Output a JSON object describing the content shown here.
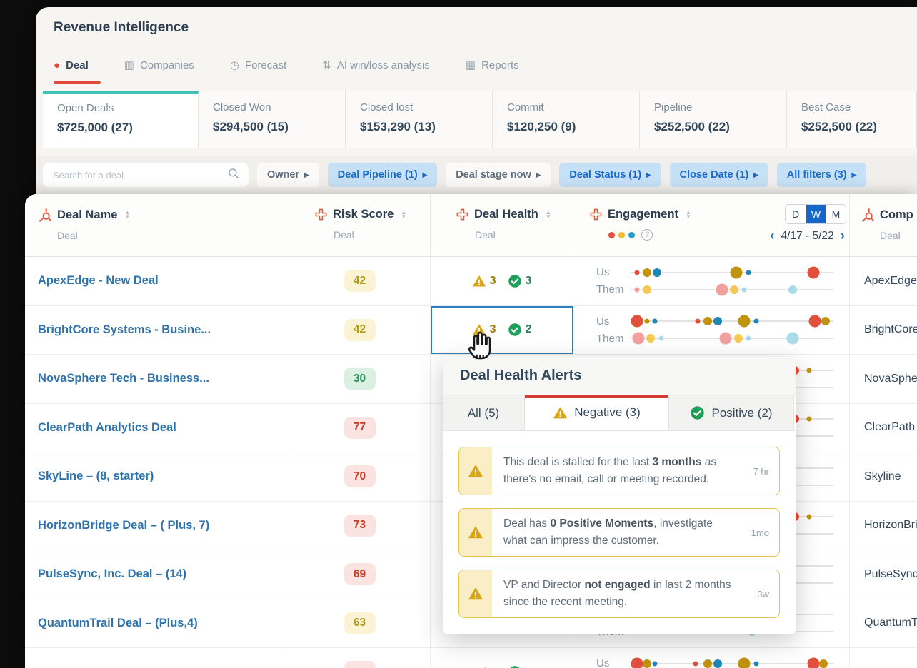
{
  "app_title": "Revenue Intelligence",
  "nav_tabs": [
    {
      "label": "Deal",
      "icon": "deal-icon",
      "glyph": "●",
      "active": true
    },
    {
      "label": "Companies",
      "icon": "companies-icon",
      "glyph": "▥",
      "active": false
    },
    {
      "label": "Forecast",
      "icon": "forecast-icon",
      "glyph": "◷",
      "active": false
    },
    {
      "label": "AI win/loss analysis",
      "icon": "ai-winloss-icon",
      "glyph": "⇅",
      "active": false
    },
    {
      "label": "Reports",
      "icon": "reports-icon",
      "glyph": "▦",
      "active": false
    }
  ],
  "summary_cards": [
    {
      "label": "Open Deals",
      "value": "$725,000 (27)",
      "selected": true
    },
    {
      "label": "Closed Won",
      "value": "$294,500 (15)",
      "selected": false
    },
    {
      "label": "Closed lost",
      "value": "$153,290 (13)",
      "selected": false
    },
    {
      "label": "Commit",
      "value": "$120,250 (9)",
      "selected": false
    },
    {
      "label": "Pipeline",
      "value": "$252,500 (22)",
      "selected": false
    },
    {
      "label": "Best Case",
      "value": "$252,500 (22)",
      "selected": false
    }
  ],
  "filter_bar": {
    "search_placeholder": "Search for a deal",
    "chips": [
      {
        "label": "Owner",
        "active": false
      },
      {
        "label": "Deal Pipeline (1)",
        "active": true
      },
      {
        "label": "Deal stage now",
        "active": false
      },
      {
        "label": "Deal Status (1)",
        "active": true
      },
      {
        "label": "Close Date (1)",
        "active": true
      },
      {
        "label": "All filters (3)",
        "active": true
      }
    ]
  },
  "table": {
    "columns": [
      {
        "title": "Deal Name",
        "subtitle": "Deal",
        "icon": "sprocket",
        "sortable": true
      },
      {
        "title": "Risk Score",
        "subtitle": "Deal",
        "icon": "cross",
        "sortable": true
      },
      {
        "title": "Deal Health",
        "subtitle": "Deal",
        "icon": "cross",
        "sortable": true
      },
      {
        "title": "Engagement",
        "icon": "cross",
        "sortable": true,
        "legend_colors": [
          "#e2503c",
          "#eebc2d",
          "#2b9bc7"
        ],
        "period_options": [
          "D",
          "W",
          "M"
        ],
        "period_selected": "W",
        "date_range": "4/17 - 5/22"
      },
      {
        "title": "Comp",
        "subtitle": "Deal",
        "icon": "sprocket",
        "sortable": false
      }
    ],
    "engagement_labels": {
      "us": "Us",
      "them": "Them"
    },
    "rows": [
      {
        "deal_name": "ApexEdge - New Deal",
        "risk_score": "42",
        "risk_level": "yellow",
        "health": {
          "negative": "3",
          "positive": "3"
        },
        "health_selected": false,
        "company": "ApexEdge",
        "us": [
          [
            "red",
            "s",
            3
          ],
          [
            "olive",
            "m",
            8
          ],
          [
            "blue",
            "m",
            13
          ],
          [
            "olive",
            "l",
            52
          ],
          [
            "blue",
            "s",
            58
          ],
          [
            "red",
            "l",
            90
          ]
        ],
        "them": [
          [
            "pink",
            "s",
            3
          ],
          [
            "yellow",
            "m",
            8
          ],
          [
            "pink",
            "l",
            45
          ],
          [
            "yellow",
            "m",
            51
          ],
          [
            "lightblue",
            "s",
            56
          ],
          [
            "lightblue",
            "m",
            80
          ]
        ]
      },
      {
        "deal_name": "BrightCore Systems - Busine...",
        "risk_score": "42",
        "risk_level": "yellow",
        "health": {
          "negative": "3",
          "positive": "2"
        },
        "health_selected": true,
        "company": "BrightCore",
        "us": [
          [
            "red",
            "l",
            3
          ],
          [
            "olive",
            "s",
            8
          ],
          [
            "blue",
            "s",
            12
          ],
          [
            "red",
            "s",
            33
          ],
          [
            "olive",
            "m",
            38
          ],
          [
            "blue",
            "m",
            43
          ],
          [
            "olive",
            "l",
            56
          ],
          [
            "blue",
            "s",
            62
          ],
          [
            "red",
            "l",
            91
          ],
          [
            "olive",
            "m",
            96
          ]
        ],
        "them": [
          [
            "pink",
            "l",
            4
          ],
          [
            "yellow",
            "m",
            10
          ],
          [
            "lightblue",
            "s",
            15
          ],
          [
            "pink",
            "l",
            47
          ],
          [
            "yellow",
            "m",
            53
          ],
          [
            "lightblue",
            "s",
            58
          ],
          [
            "lightblue",
            "l",
            80
          ]
        ]
      },
      {
        "deal_name": "NovaSphere Tech - Business...",
        "risk_score": "30",
        "risk_level": "green",
        "health": null,
        "health_selected": false,
        "company": "NovaSphere",
        "us": [
          [
            "red",
            "m",
            81
          ],
          [
            "olive",
            "s",
            88
          ]
        ],
        "them": []
      },
      {
        "deal_name": "ClearPath Analytics Deal",
        "risk_score": "77",
        "risk_level": "red",
        "health": null,
        "health_selected": false,
        "company": "ClearPath",
        "us": [
          [
            "red",
            "m",
            81
          ],
          [
            "olive",
            "s",
            88
          ]
        ],
        "them": []
      },
      {
        "deal_name": "SkyLine – (8, starter)",
        "risk_score": "70",
        "risk_level": "red",
        "health": null,
        "health_selected": false,
        "company": "Skyline",
        "us": [
          [
            "red",
            "m",
            78
          ]
        ],
        "them": []
      },
      {
        "deal_name": "HorizonBridge Deal – ( Plus, 7)",
        "risk_score": "73",
        "risk_level": "red",
        "health": null,
        "health_selected": false,
        "company": "HorizonBridge",
        "us": [
          [
            "red",
            "m",
            81
          ],
          [
            "olive",
            "s",
            88
          ]
        ],
        "them": []
      },
      {
        "deal_name": "PulseSync, Inc. Deal – (14)",
        "risk_score": "69",
        "risk_level": "red",
        "health": null,
        "health_selected": false,
        "company": "PulseSync",
        "us": [
          [
            "red",
            "m",
            78
          ]
        ],
        "them": []
      },
      {
        "deal_name": "QuantumTrail Deal – (Plus,4)",
        "risk_score": "63",
        "risk_level": "yellow",
        "health": null,
        "health_selected": false,
        "company": "QuantumTrail",
        "us": [
          [
            "red",
            "m",
            78
          ]
        ],
        "them": [
          [
            "lightblue",
            "m",
            60
          ]
        ]
      },
      {
        "deal_name": "",
        "risk_score": "",
        "risk_level": "red",
        "health": {
          "negative": "",
          "positive": ""
        },
        "health_selected": false,
        "company": "",
        "us": [
          [
            "red",
            "l",
            3
          ],
          [
            "olive",
            "m",
            8
          ],
          [
            "blue",
            "s",
            12
          ],
          [
            "red",
            "s",
            32
          ],
          [
            "olive",
            "m",
            38
          ],
          [
            "blue",
            "m",
            43
          ],
          [
            "olive",
            "l",
            56
          ],
          [
            "blue",
            "s",
            62
          ],
          [
            "red",
            "l",
            90
          ],
          [
            "olive",
            "m",
            95
          ]
        ],
        "them": []
      }
    ]
  },
  "popup": {
    "title": "Deal Health Alerts",
    "tabs": [
      {
        "label": "All (5)",
        "icon": null,
        "active": false
      },
      {
        "label": "Negative (3)",
        "icon": "warning-icon",
        "active": true
      },
      {
        "label": "Positive (2)",
        "icon": "check-icon",
        "active": false
      }
    ],
    "alerts": [
      {
        "segments": [
          {
            "t": "This deal is stalled for the last "
          },
          {
            "t": "3 months",
            "b": true
          },
          {
            "t": " as there's no email, call or meeting recorded."
          }
        ],
        "time": "7 hr"
      },
      {
        "segments": [
          {
            "t": "Deal has "
          },
          {
            "t": "0 Positive Moments",
            "b": true
          },
          {
            "t": ", investigate what can impress the customer."
          }
        ],
        "time": "1mo"
      },
      {
        "segments": [
          {
            "t": "VP and Director "
          },
          {
            "t": "not engaged",
            "b": true
          },
          {
            "t": " in last 2 months since the recent meeting."
          }
        ],
        "time": "3w"
      }
    ]
  },
  "colors": {
    "accent_red": "#e2493b",
    "selected_card_teal": "#3fc1b5",
    "filter_active_bg": "#c6e0f5",
    "filter_active_text": "#1b6ac9",
    "link_blue": "#2e73ad",
    "warning_gold": "#d9a514",
    "positive_green": "#1e9e58",
    "selection_border": "#2e7fc0",
    "dots": {
      "red": "#e2503c",
      "olive": "#c0920e",
      "blue": "#1f87b5",
      "pink": "#f2a09e",
      "yellow": "#f3ca55",
      "lightblue": "#a9dbe9"
    }
  }
}
